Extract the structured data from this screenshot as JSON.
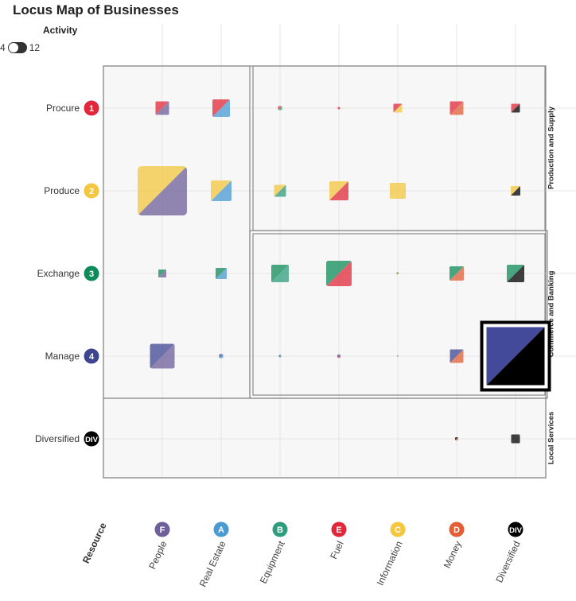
{
  "title": "Locus Map of Businesses",
  "activity_control": {
    "title": "Activity",
    "min_label": "4",
    "max_label": "12"
  },
  "colors": {
    "F": "#6e5e9a",
    "A": "#4a9ad4",
    "B": "#2f9c7e",
    "E": "#e0283a",
    "C": "#f4c73e",
    "D": "#e35d36",
    "DIV": "#000000",
    "row1": "#e0283a",
    "row2": "#f4c73e",
    "row3": "#0d8c5a",
    "row4": "#3d4591",
    "row5": "#000000",
    "grid": "#e6e6e6",
    "panel_bg": "#f7f7f7",
    "panel_border": "#8a8a8a",
    "highlight_fill": "#434a9a"
  },
  "chart_data": {
    "type": "heatmap",
    "title": "Locus Map of Businesses",
    "xlabel": "Resource",
    "ylabel": "",
    "grid": true,
    "columns": [
      {
        "code": "F",
        "label": "People"
      },
      {
        "code": "A",
        "label": "Real Estate"
      },
      {
        "code": "B",
        "label": "Equipment"
      },
      {
        "code": "E",
        "label": "Fuel"
      },
      {
        "code": "C",
        "label": "Information"
      },
      {
        "code": "D",
        "label": "Money"
      },
      {
        "code": "DIV",
        "label": "Diversified"
      }
    ],
    "rows": [
      {
        "code": "1",
        "label": "Procure"
      },
      {
        "code": "2",
        "label": "Produce"
      },
      {
        "code": "3",
        "label": "Exchange"
      },
      {
        "code": "4",
        "label": "Manage"
      },
      {
        "code": "DIV",
        "label": "Diversified"
      }
    ],
    "regions": [
      {
        "label": "",
        "rows": [
          0,
          3
        ],
        "cols": [
          0,
          1
        ]
      },
      {
        "label": "Production and Supply",
        "rows": [
          0,
          1
        ],
        "cols": [
          2,
          6
        ]
      },
      {
        "label": "Commerce and Banking",
        "rows": [
          2,
          3
        ],
        "cols": [
          2,
          6
        ]
      },
      {
        "label": "Local Services",
        "rows": [
          4,
          4
        ],
        "cols": [
          0,
          6
        ]
      }
    ],
    "cells": [
      {
        "row": 0,
        "col": 0,
        "value": 17
      },
      {
        "row": 0,
        "col": 1,
        "value": 22
      },
      {
        "row": 0,
        "col": 2,
        "value": 5
      },
      {
        "row": 0,
        "col": 3,
        "value": 3
      },
      {
        "row": 0,
        "col": 4,
        "value": 11
      },
      {
        "row": 0,
        "col": 5,
        "value": 17
      },
      {
        "row": 0,
        "col": 6,
        "value": 11
      },
      {
        "row": 1,
        "col": 0,
        "value": 62
      },
      {
        "row": 1,
        "col": 1,
        "value": 26
      },
      {
        "row": 1,
        "col": 2,
        "value": 15
      },
      {
        "row": 1,
        "col": 3,
        "value": 24
      },
      {
        "row": 1,
        "col": 4,
        "value": 20
      },
      {
        "row": 1,
        "col": 6,
        "value": 12
      },
      {
        "row": 2,
        "col": 0,
        "value": 10
      },
      {
        "row": 2,
        "col": 1,
        "value": 14
      },
      {
        "row": 2,
        "col": 2,
        "value": 22
      },
      {
        "row": 2,
        "col": 3,
        "value": 32
      },
      {
        "row": 2,
        "col": 4,
        "value": 3
      },
      {
        "row": 2,
        "col": 5,
        "value": 18
      },
      {
        "row": 2,
        "col": 6,
        "value": 22
      },
      {
        "row": 3,
        "col": 0,
        "value": 31
      },
      {
        "row": 3,
        "col": 1,
        "value": 5
      },
      {
        "row": 3,
        "col": 2,
        "value": 3
      },
      {
        "row": 3,
        "col": 3,
        "value": 4
      },
      {
        "row": 3,
        "col": 4,
        "value": 2
      },
      {
        "row": 3,
        "col": 5,
        "value": 17
      },
      {
        "row": 3,
        "col": 6,
        "value": 73,
        "highlighted": true
      },
      {
        "row": 4,
        "col": 5,
        "value": 4
      },
      {
        "row": 4,
        "col": 6,
        "value": 11
      }
    ]
  }
}
